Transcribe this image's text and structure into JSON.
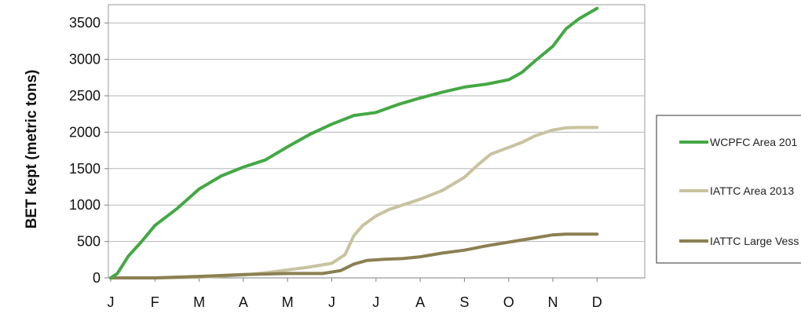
{
  "chart_data": {
    "type": "line",
    "xlabel": "",
    "ylabel": "BET kept (metric tons)",
    "ylim": [
      0,
      3750
    ],
    "y_ticks": [
      0,
      500,
      1000,
      1500,
      2000,
      2500,
      3000,
      3500
    ],
    "categories": [
      "J",
      "F",
      "M",
      "A",
      "M",
      "J",
      "J",
      "A",
      "S",
      "O",
      "N",
      "D"
    ],
    "grid": "horizontal",
    "legend_position": "right",
    "series": [
      {
        "name": "WCPFC Area 201",
        "color": "#44a844",
        "x": [
          0,
          0.15,
          0.4,
          0.7,
          1.0,
          1.5,
          2.0,
          2.5,
          3.0,
          3.5,
          4.0,
          4.5,
          5.0,
          5.5,
          6.0,
          6.5,
          7.0,
          7.5,
          8.0,
          8.5,
          9.0,
          9.3,
          9.6,
          10.0,
          10.3,
          10.6,
          11.0
        ],
        "values": [
          0,
          60,
          300,
          500,
          720,
          950,
          1220,
          1400,
          1520,
          1620,
          1800,
          1970,
          2110,
          2230,
          2270,
          2380,
          2470,
          2550,
          2620,
          2660,
          2720,
          2820,
          2980,
          3180,
          3420,
          3560,
          3700
        ]
      },
      {
        "name": "IATTC Area 2013",
        "color": "#c8c3a0",
        "x": [
          0,
          1.0,
          2.0,
          3.0,
          3.5,
          4.0,
          4.5,
          5.0,
          5.3,
          5.5,
          5.7,
          6.0,
          6.3,
          6.6,
          7.0,
          7.5,
          8.0,
          8.3,
          8.6,
          9.0,
          9.3,
          9.6,
          10.0,
          10.3,
          10.6,
          11.0
        ],
        "values": [
          0,
          0,
          10,
          40,
          70,
          110,
          150,
          200,
          320,
          580,
          720,
          850,
          940,
          1000,
          1080,
          1200,
          1380,
          1550,
          1700,
          1790,
          1860,
          1950,
          2030,
          2060,
          2065,
          2065
        ]
      },
      {
        "name": "IATTC Large Vess",
        "color": "#8a8052",
        "x": [
          0,
          1.0,
          2.0,
          3.0,
          4.0,
          4.8,
          5.2,
          5.5,
          5.8,
          6.2,
          6.6,
          7.0,
          7.5,
          8.0,
          8.5,
          9.0,
          9.5,
          10.0,
          10.3,
          10.6,
          11.0
        ],
        "values": [
          0,
          0,
          20,
          45,
          60,
          60,
          100,
          190,
          240,
          255,
          265,
          290,
          340,
          380,
          440,
          490,
          540,
          590,
          600,
          600,
          600
        ]
      }
    ]
  }
}
